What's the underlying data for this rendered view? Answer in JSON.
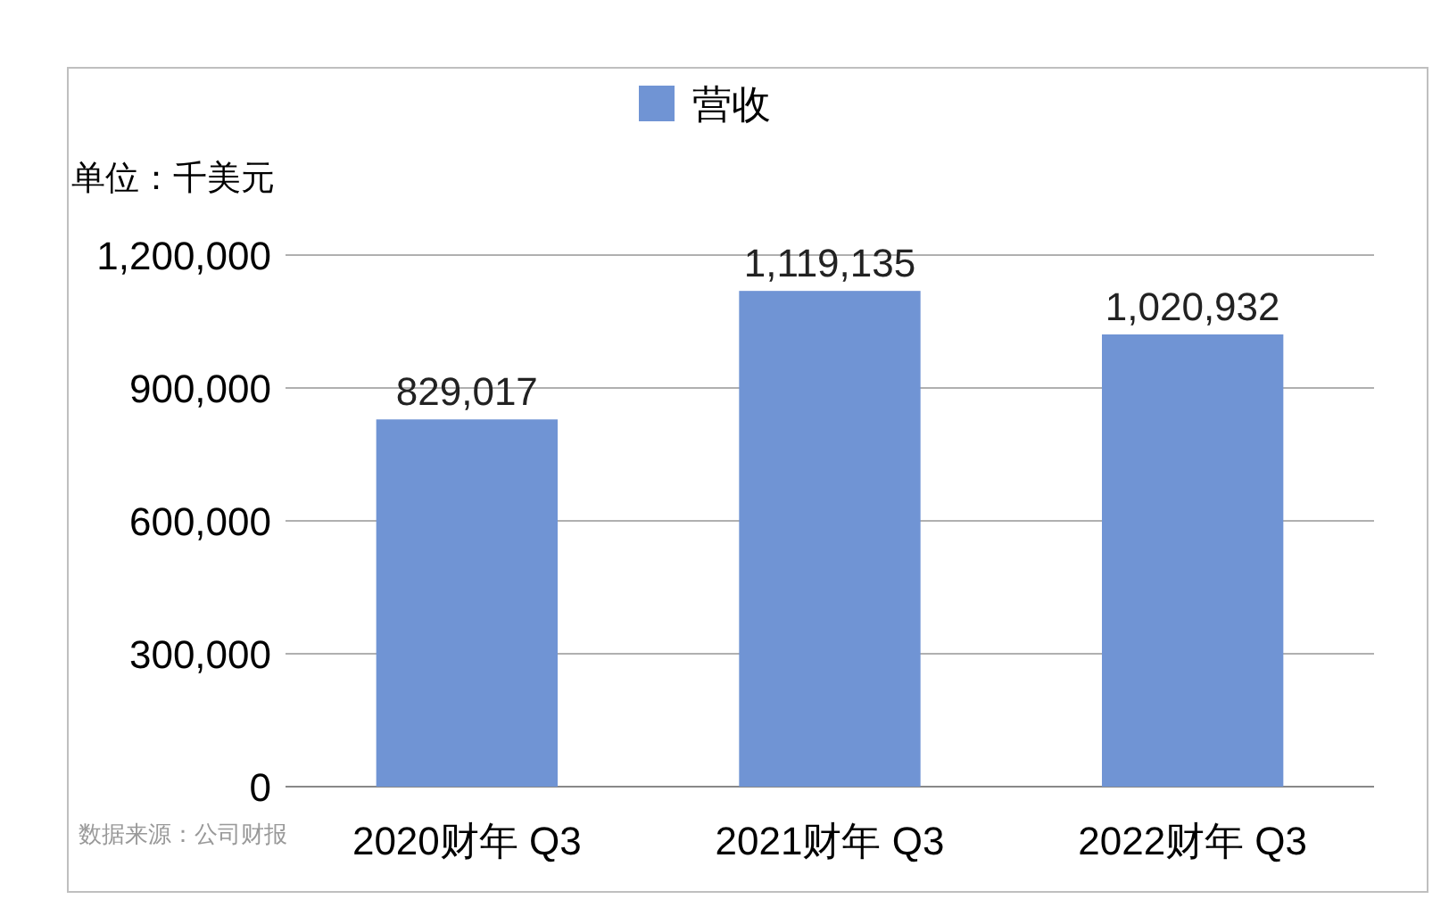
{
  "chart_data": {
    "type": "bar",
    "categories": [
      "2020财年 Q3",
      "2021财年 Q3",
      "2022财年 Q3"
    ],
    "series": [
      {
        "name": "营收",
        "color": "#7094d4",
        "values": [
          829017,
          1119135,
          1020932
        ],
        "value_labels": [
          "829,017",
          "1,119,135",
          "1,020,932"
        ]
      }
    ],
    "ylabel": "单位：千美元",
    "ylim": [
      0,
      1200000
    ],
    "yticks": [
      0,
      {
        "value": 300000,
        "label": "300,000"
      },
      {
        "value": 600000,
        "label": "600,000"
      },
      {
        "value": 900000,
        "label": "900,000"
      },
      {
        "value": 1200000,
        "label": "1,200,000"
      }
    ],
    "grid": "y",
    "legend": "top",
    "annotations": [
      "数据来源：公司财报"
    ]
  }
}
